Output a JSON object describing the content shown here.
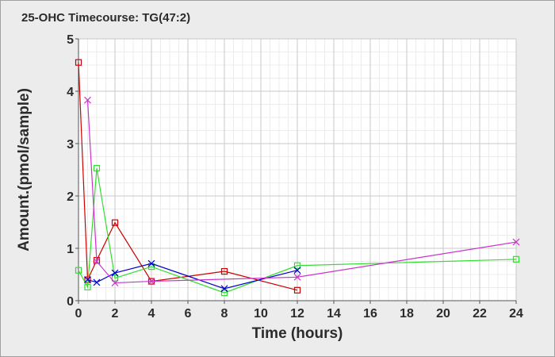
{
  "chart_data": {
    "type": "line",
    "title": "25-OHC Timecourse: TG(47:2)",
    "xlabel": "Time (hours)",
    "ylabel": "Amount.(pmol/sample)",
    "xlim": [
      0,
      24
    ],
    "ylim": [
      0,
      5
    ],
    "x_ticks": [
      "0",
      "2",
      "4",
      "6",
      "8",
      "10",
      "12",
      "14",
      "16",
      "18",
      "20",
      "22",
      "24"
    ],
    "y_ticks": [
      "0",
      "1",
      "2",
      "3",
      "4",
      "5"
    ],
    "grid": true,
    "series": [
      {
        "color": "#cc0000",
        "marker": "square",
        "points": [
          [
            0,
            4.55
          ],
          [
            0.5,
            0.4
          ],
          [
            1,
            0.77
          ],
          [
            2,
            1.49
          ],
          [
            4,
            0.37
          ],
          [
            8,
            0.56
          ],
          [
            12,
            0.2
          ]
        ]
      },
      {
        "color": "#33dd33",
        "marker": "square",
        "points": [
          [
            0,
            0.58
          ],
          [
            0.5,
            0.26
          ],
          [
            1,
            2.53
          ],
          [
            2,
            0.43
          ],
          [
            4,
            0.65
          ],
          [
            8,
            0.15
          ],
          [
            12,
            0.67
          ],
          [
            24,
            0.79
          ]
        ]
      },
      {
        "color": "#0000cc",
        "marker": "x",
        "points": [
          [
            0.5,
            0.4
          ],
          [
            1,
            0.35
          ],
          [
            2,
            0.53
          ],
          [
            4,
            0.71
          ],
          [
            8,
            0.23
          ],
          [
            12,
            0.58
          ]
        ]
      },
      {
        "color": "#cc33cc",
        "marker": "x",
        "points": [
          [
            0.5,
            3.83
          ],
          [
            1,
            0.75
          ],
          [
            2,
            0.34
          ],
          [
            4,
            0.37
          ],
          [
            12,
            0.45
          ],
          [
            24,
            1.12
          ]
        ]
      }
    ]
  }
}
